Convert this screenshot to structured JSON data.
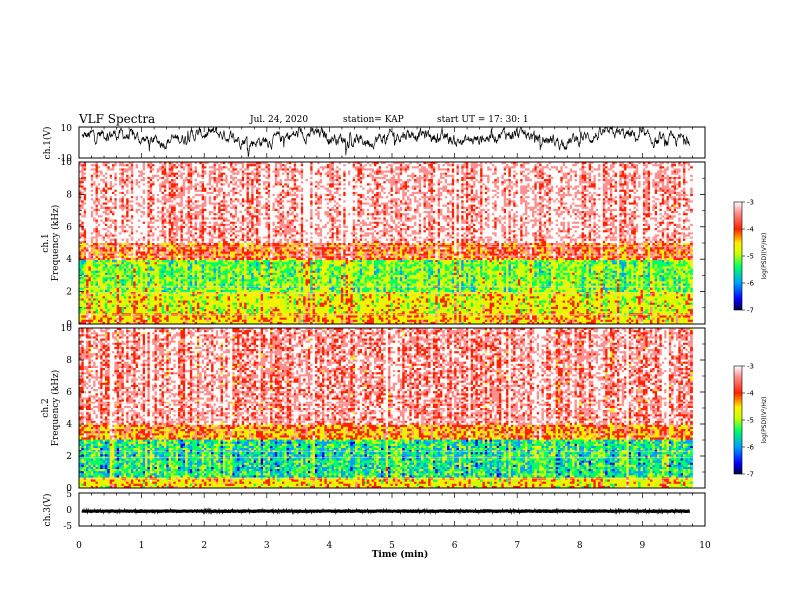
{
  "header": {
    "title": "VLF Spectra",
    "date": "Jul. 24, 2020",
    "station": "station= KAP",
    "start": "start UT =  17: 30: 1"
  },
  "chart_data": [
    {
      "type": "line",
      "panel": "waveform-ch1",
      "ylabel": "ch.1(V)",
      "ylim": [
        -10,
        10
      ],
      "y_ticks": [
        "10",
        "-10"
      ],
      "xlim": [
        0,
        10
      ],
      "series": [
        {
          "stats": {
            "mean": 3.3,
            "range": [
              -10,
              10
            ],
            "noise": "dense"
          }
        }
      ]
    },
    {
      "type": "heatmap",
      "panel": "spectrogram-ch1",
      "ylabel": "ch.1 Frequency (kHz)",
      "ylim": [
        0,
        10
      ],
      "y_ticks": [
        "0",
        "2",
        "4",
        "6",
        "8",
        "10"
      ],
      "xlim": [
        0,
        9.8
      ],
      "dominant_log_psd_by_frequency": [
        {
          "from_khz": 0.0,
          "to_khz": 0.7,
          "level": -4.5
        },
        {
          "from_khz": 0.7,
          "to_khz": 2.0,
          "level": -4.8
        },
        {
          "from_khz": 2.0,
          "to_khz": 4.0,
          "level": -5.2
        },
        {
          "from_khz": 4.0,
          "to_khz": 5.0,
          "level": -4.1
        },
        {
          "from_khz": 5.0,
          "to_khz": 10.0,
          "level": -3.5
        }
      ],
      "colorbar": {
        "label": "log(PSD)(V²/Hz)",
        "ticks": [
          "-3",
          "-4",
          "-5",
          "-6",
          "-7"
        ],
        "range": [
          -7,
          -3
        ]
      }
    },
    {
      "type": "heatmap",
      "panel": "spectrogram-ch2",
      "ylabel": "ch.2 Frequency (kHz)",
      "ylim": [
        0,
        10
      ],
      "y_ticks": [
        "0",
        "2",
        "4",
        "6",
        "8",
        "10"
      ],
      "xlim": [
        0,
        9.8
      ],
      "dominant_log_psd_by_frequency": [
        {
          "from_khz": 0.0,
          "to_khz": 0.7,
          "level": -4.6
        },
        {
          "from_khz": 0.7,
          "to_khz": 3.0,
          "level": -5.5
        },
        {
          "from_khz": 3.0,
          "to_khz": 4.0,
          "level": -4.3
        },
        {
          "from_khz": 4.0,
          "to_khz": 10.0,
          "level": -3.6
        }
      ],
      "colorbar": {
        "label": "log(PSD)(V²/Hz)",
        "ticks": [
          "-3",
          "-4",
          "-5",
          "-6",
          "-7"
        ],
        "range": [
          -7,
          -3
        ]
      }
    },
    {
      "type": "line",
      "panel": "waveform-ch3",
      "ylabel": "ch.3(V)",
      "ylim": [
        -5,
        5
      ],
      "y_ticks": [
        "5",
        "0",
        "-5"
      ],
      "xlim": [
        0,
        10
      ],
      "xlabel": "Time (min)",
      "x_ticks": [
        "0",
        "1",
        "2",
        "3",
        "4",
        "5",
        "6",
        "7",
        "8",
        "9",
        "10"
      ],
      "series": [
        {
          "stats": {
            "center": -0.5,
            "spread": 0.45
          }
        }
      ]
    }
  ],
  "colors": {
    "waveform": "#000000",
    "colormap": [
      "#000066",
      "#0000ff",
      "#00a0ff",
      "#00ff66",
      "#ccff00",
      "#ffee00",
      "#ff2200",
      "#ff9090",
      "#ffffff"
    ]
  }
}
